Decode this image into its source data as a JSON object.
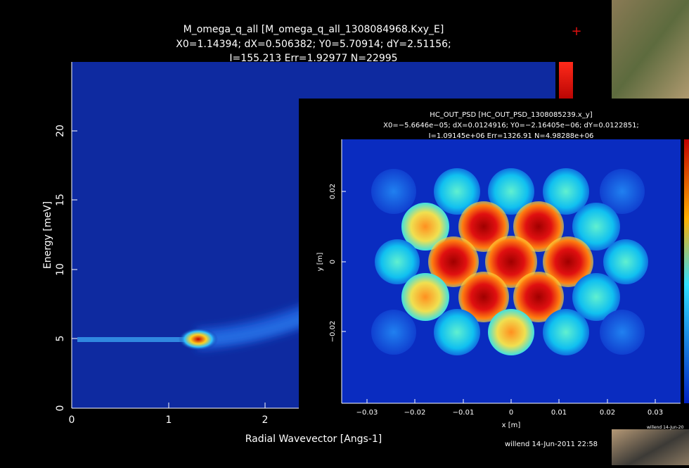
{
  "window_1": {
    "title": [
      "M_omega_q_all [M_omega_q_all_1308084968.Kxy_E]",
      "X0=1.14394; dX=0.506382; Y0=5.70914; dY=2.51156;",
      "I=155.213 Err=1.92977 N=22995"
    ],
    "y_label": "Energy [meV]",
    "x_label": "Radial Wavevector [Angs-1]",
    "y_ticks": [
      "0",
      "5",
      "10",
      "15",
      "20"
    ],
    "x_ticks": [
      "0",
      "1",
      "2"
    ],
    "footer": "willend 14-Jun-2011 22:58"
  },
  "window_2": {
    "title": [
      "HC_OUT_PSD [HC_OUT_PSD_1308085239.x_y]",
      "X0=−5.6646e−05; dX=0.0124916; Y0=−2.16405e−06; dY=0.0122851;",
      "I=1.09145e+06 Err=1326.91 N=4.98288e+06"
    ],
    "y_label": "y [m]",
    "x_label": "x [m]",
    "y_ticks": [
      "0.02",
      "0",
      "−0.02"
    ],
    "x_ticks": [
      "−0.03",
      "−0.02",
      "−0.01",
      "0",
      "0.01",
      "0.02",
      "0.03"
    ],
    "footer": "willend 14-Jun-20"
  }
}
